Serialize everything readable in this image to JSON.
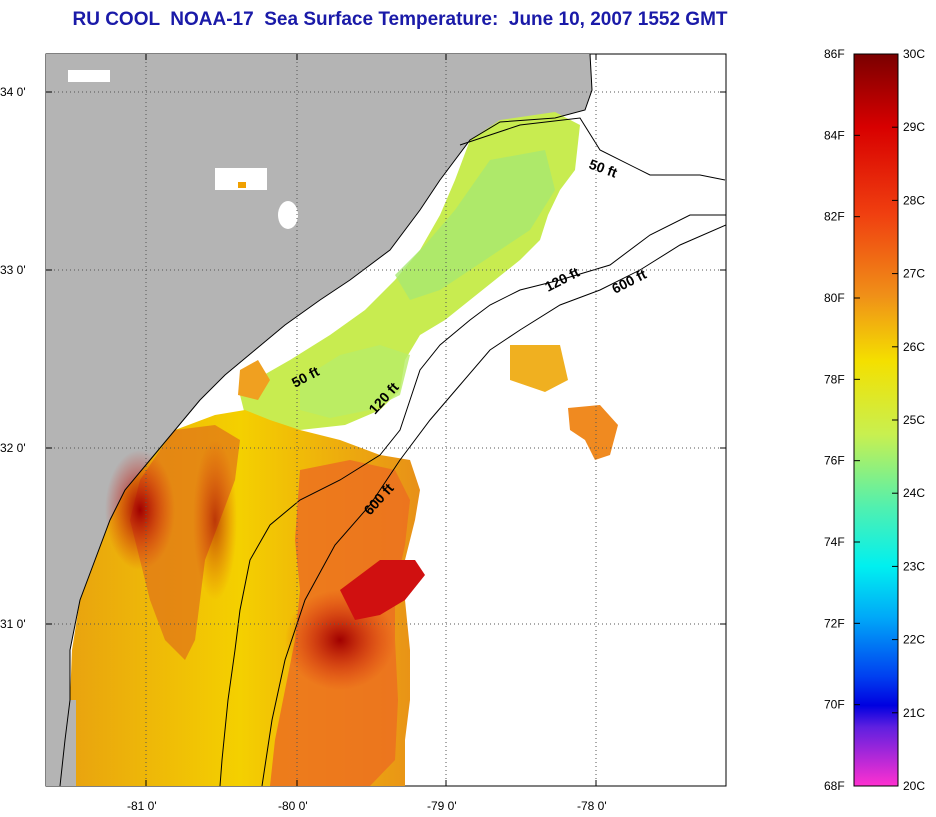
{
  "title": "RU COOL  NOAA-17  Sea Surface Temperature:  June 10, 2007 1552 GMT",
  "map": {
    "lat_ticks": [
      "34 0'",
      "33 0'",
      "32 0'",
      "31 0'"
    ],
    "lon_ticks": [
      "-81 0'",
      "-80 0'",
      "-79 0'",
      "-78 0'"
    ],
    "depth_labels": [
      "50 ft",
      "50 ft",
      "120 ft",
      "120 ft",
      "600 ft",
      "600 ft"
    ]
  },
  "colorbar": {
    "fahrenheit": [
      "86F",
      "84F",
      "82F",
      "80F",
      "78F",
      "76F",
      "74F",
      "72F",
      "70F",
      "68F"
    ],
    "celsius": [
      "30C",
      "29C",
      "28C",
      "27C",
      "26C",
      "25C",
      "24C",
      "23C",
      "22C",
      "21C",
      "20C"
    ],
    "min_f": 68,
    "max_f": 86,
    "colors": {
      "top": "#7a0000",
      "red": "#e60000",
      "orange": "#f07818",
      "yellow": "#f4f000",
      "green": "#a8f080",
      "cyan": "#00f4f4",
      "blue": "#0050f0",
      "navy": "#0000e0",
      "violet": "#6020e0",
      "magenta": "#ff30d0"
    }
  },
  "colors": {
    "land": "#b4b4b4",
    "ocean": "#ffffff",
    "title": "#1a1aa8"
  }
}
